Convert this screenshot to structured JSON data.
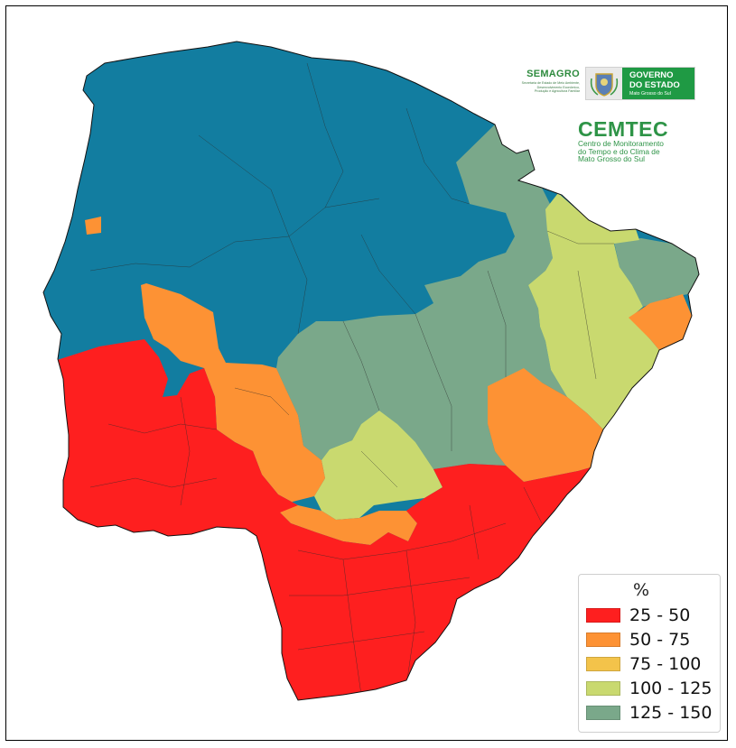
{
  "logos": {
    "semagro_name": "SEMAGRO",
    "semagro_desc_1": "Secretaria de Estado de Meio Ambiente,",
    "semagro_desc_2": "Desenvolvimento Econômico,",
    "semagro_desc_3": "Produção e Agricultura Familiar",
    "gov_line1": "GOVERNO",
    "gov_line2": "DO ESTADO",
    "gov_line3": "Mato Grosso do Sul",
    "cemtec_name": "CEMTEC",
    "cemtec_sub1": "Centro de Monitoramento",
    "cemtec_sub2": "do Tempo e do Clima de",
    "cemtec_sub3": "Mato Grosso do Sul"
  },
  "legend": {
    "title": "%",
    "classes": [
      {
        "label": "25 - 50",
        "color": "#fe1f1f"
      },
      {
        "label": "50 - 75",
        "color": "#fd9234"
      },
      {
        "label": "75 - 100",
        "color": "#f3c34a"
      },
      {
        "label": "100 - 125",
        "color": "#c9d96f"
      },
      {
        "label": "125 - 150",
        "color": "#7aa88a"
      }
    ],
    "above_range_color": "#127da0"
  }
}
